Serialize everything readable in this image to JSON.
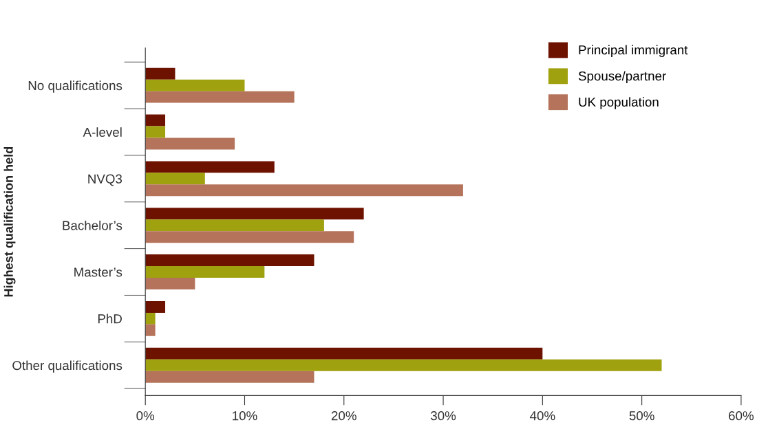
{
  "chart_data": {
    "type": "bar",
    "orientation": "horizontal",
    "ylabel": "Highest qualification held",
    "categories": [
      "No qualifications",
      "A-level",
      "NVQ3",
      "Bachelor’s",
      "Master’s",
      "PhD",
      "Other qualifications"
    ],
    "series": [
      {
        "name": "Principal immigrant",
        "color": "#6e1200",
        "values": [
          3,
          2,
          13,
          22,
          17,
          2,
          40
        ]
      },
      {
        "name": "Spouse/partner",
        "color": "#a0a10e",
        "values": [
          10,
          2,
          6,
          18,
          12,
          1,
          52
        ]
      },
      {
        "name": "UK population",
        "color": "#b4735a",
        "values": [
          15,
          9,
          32,
          21,
          5,
          1,
          17
        ]
      }
    ],
    "xlim": [
      0,
      60
    ],
    "xticks": [
      {
        "value": 0,
        "label": "0%"
      },
      {
        "value": 10,
        "label": "10%"
      },
      {
        "value": 20,
        "label": "20%"
      },
      {
        "value": 30,
        "label": "30%"
      },
      {
        "value": 40,
        "label": "40%"
      },
      {
        "value": 50,
        "label": "50%"
      },
      {
        "value": 60,
        "label": "60%"
      }
    ],
    "grid": false,
    "legend": "top right"
  }
}
